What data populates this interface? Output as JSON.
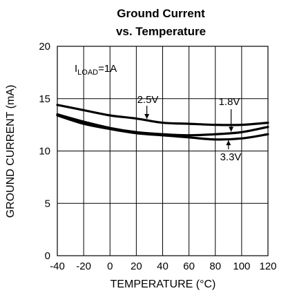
{
  "chart_data": {
    "type": "line",
    "title": "Ground Current",
    "subtitle": "vs. Temperature",
    "xlabel": "TEMPERATURE (°C)",
    "ylabel": "GROUND CURRENT (mA)",
    "xlim": [
      -40,
      120
    ],
    "ylim": [
      0,
      20
    ],
    "x_ticks": [
      -40,
      -20,
      0,
      20,
      40,
      60,
      80,
      100,
      120
    ],
    "y_ticks": [
      0,
      5,
      10,
      15,
      20
    ],
    "x_tick_labels": [
      "-40",
      "-20",
      "0",
      "20",
      "40",
      "60",
      "80",
      "100",
      "120"
    ],
    "y_tick_labels": [
      "0",
      "5",
      "10",
      "15",
      "20"
    ],
    "grid": true,
    "condition_label": {
      "main": "I",
      "sub": "LOAD",
      "suffix": "=1A"
    },
    "series": [
      {
        "name": "2.5V",
        "x": [
          -40,
          -20,
          0,
          20,
          40,
          60,
          80,
          100,
          120
        ],
        "y": [
          14.4,
          13.9,
          13.4,
          13.1,
          12.7,
          12.6,
          12.5,
          12.5,
          12.7
        ]
      },
      {
        "name": "1.8V",
        "x": [
          -40,
          -20,
          0,
          20,
          40,
          60,
          80,
          100,
          120
        ],
        "y": [
          13.5,
          12.8,
          12.2,
          11.8,
          11.6,
          11.5,
          11.6,
          11.8,
          12.3
        ]
      },
      {
        "name": "3.3V",
        "x": [
          -40,
          -20,
          0,
          20,
          40,
          60,
          80,
          100,
          120
        ],
        "y": [
          13.4,
          12.6,
          12.1,
          11.7,
          11.5,
          11.3,
          11.1,
          11.2,
          11.6
        ]
      }
    ],
    "annotations": [
      {
        "text": "2.5V",
        "series": "2.5V"
      },
      {
        "text": "1.8V",
        "series": "1.8V"
      },
      {
        "text": "3.3V",
        "series": "3.3V"
      }
    ],
    "colors": {
      "line": "#000000",
      "grid": "#000000",
      "background": "#ffffff"
    }
  }
}
